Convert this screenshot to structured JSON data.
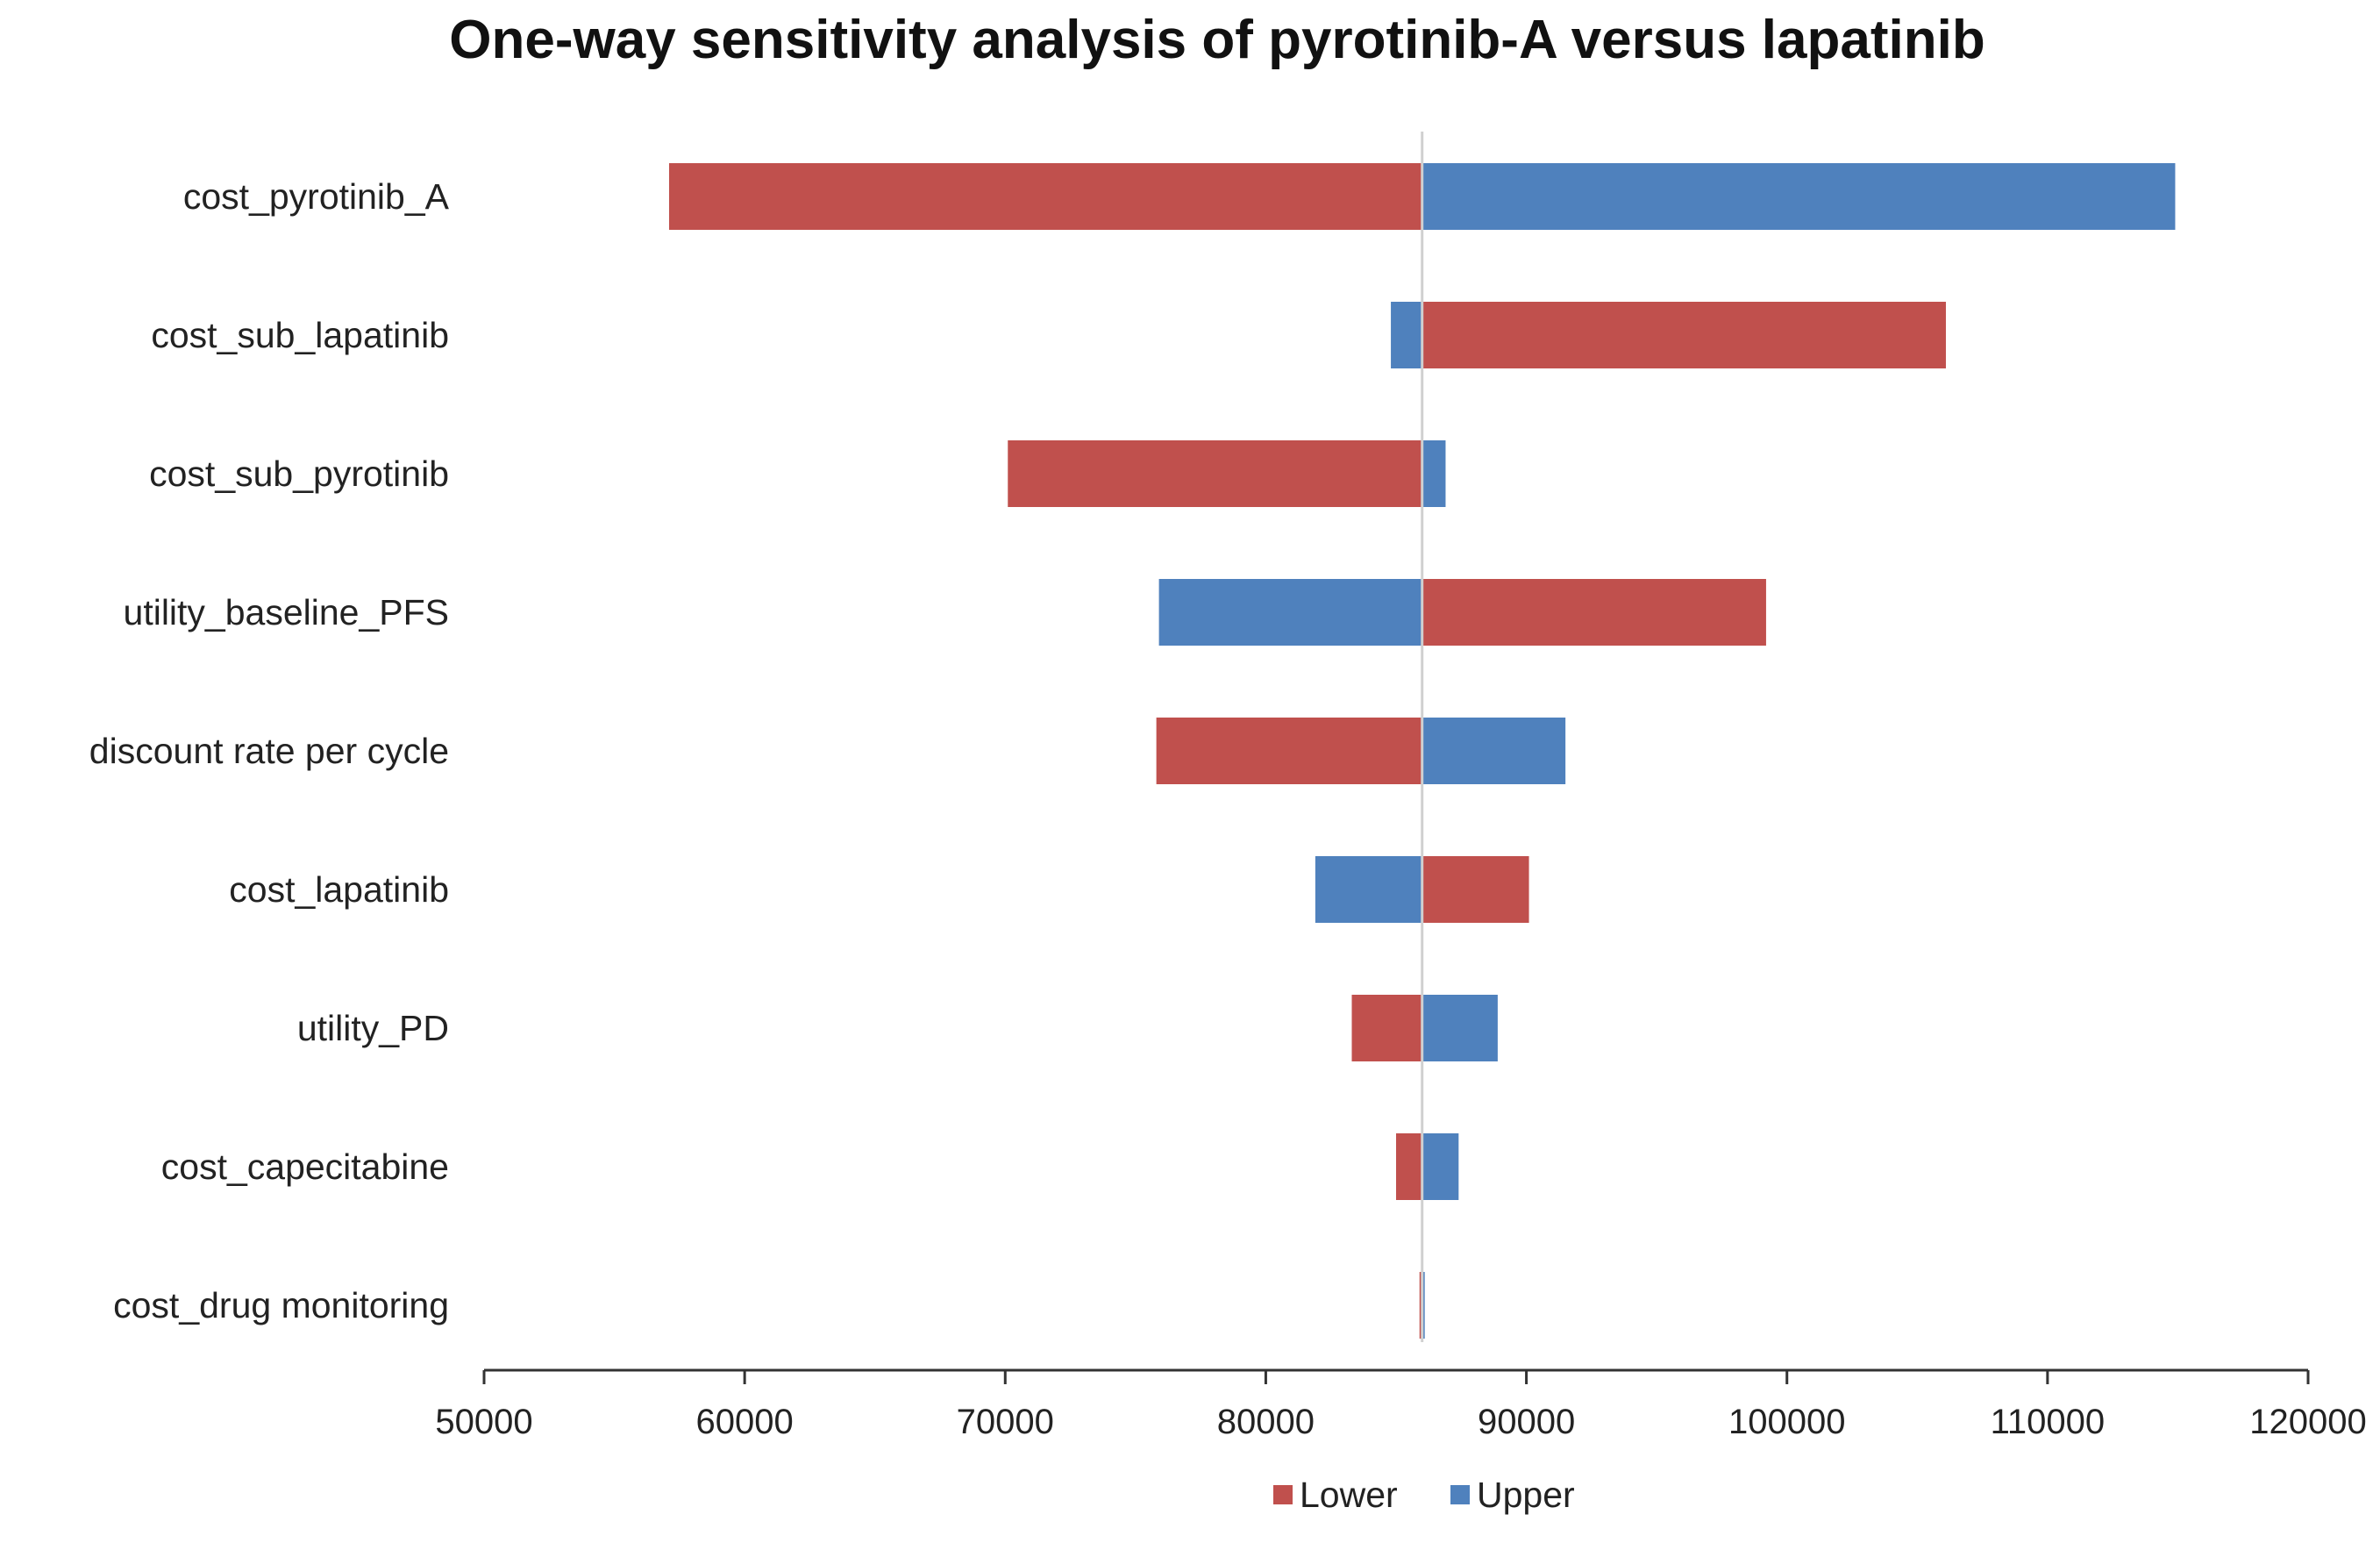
{
  "chart_data": {
    "type": "bar",
    "orientation": "horizontal",
    "subtype": "tornado",
    "title": "One-way sensitivity analysis of pyrotinib-A versus lapatinib",
    "xlabel": "",
    "ylabel": "",
    "base_value": 86000,
    "xlim": [
      50000,
      120000
    ],
    "x_ticks": [
      50000,
      60000,
      70000,
      80000,
      90000,
      100000,
      110000,
      120000
    ],
    "x_tick_labels": [
      "50000",
      "60000",
      "70000",
      "80000",
      "90000",
      "100000",
      "110000",
      "120000"
    ],
    "grid": false,
    "legend_position": "bottom",
    "categories": [
      "cost_pyrotinib_A",
      "cost_sub_lapatinib",
      "cost_sub_pyrotinib",
      "utility_baseline_PFS",
      "discount rate per cycle",
      "cost_lapatinib",
      "utility_PD",
      "cost_capecitabine",
      "cost_drug monitoring"
    ],
    "series": [
      {
        "name": "Lower",
        "color": "#c0504d",
        "values": [
          57100,
          106100,
          70100,
          99200,
          75800,
          90100,
          83300,
          85000,
          85900
        ]
      },
      {
        "name": "Upper",
        "color": "#4f81bd",
        "values": [
          114900,
          84800,
          86900,
          75900,
          91500,
          81900,
          88900,
          87400,
          86100
        ]
      }
    ]
  }
}
